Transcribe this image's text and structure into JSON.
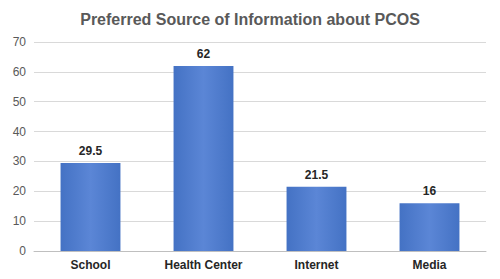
{
  "chart_data": {
    "type": "bar",
    "title": "Preferred Source of Information about PCOS",
    "categories": [
      "School",
      "Health Center",
      "Internet",
      "Media"
    ],
    "values": [
      29.5,
      62,
      21.5,
      16
    ],
    "color": "#4472c4",
    "ylim": [
      0,
      70
    ],
    "yticks": [
      0,
      10,
      20,
      30,
      40,
      50,
      60,
      70
    ],
    "grid": true,
    "data_labels": true
  }
}
